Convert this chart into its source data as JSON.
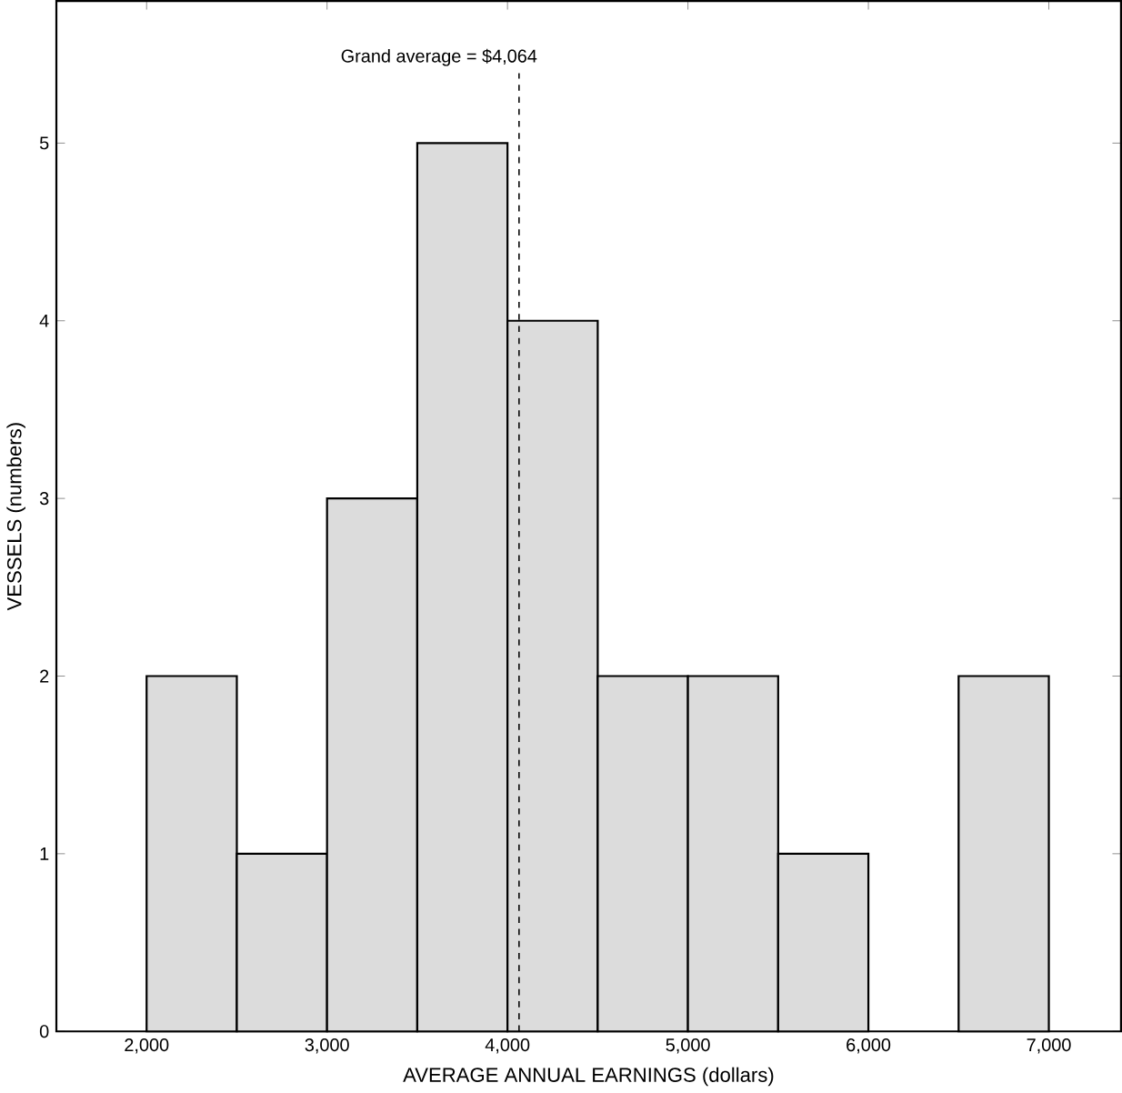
{
  "chart_data": {
    "type": "histogram",
    "xlabel": "AVERAGE ANNUAL EARNINGS (dollars)",
    "ylabel": "VESSELS (numbers)",
    "bins": [
      2000,
      2500,
      3000,
      3500,
      4000,
      4500,
      5000,
      5500,
      6000,
      6500,
      7000
    ],
    "values": [
      2,
      1,
      3,
      5,
      4,
      2,
      2,
      1,
      0,
      2
    ],
    "color": "#dcdcdc",
    "xlim": [
      1500,
      7400
    ],
    "ylim": [
      0,
      5.8
    ],
    "xticks": [
      {
        "value": 2000,
        "label": "2,000"
      },
      {
        "value": 3000,
        "label": "3,000"
      },
      {
        "value": 4000,
        "label": "4,000"
      },
      {
        "value": 5000,
        "label": "5,000"
      },
      {
        "value": 6000,
        "label": "6,000"
      },
      {
        "value": 7000,
        "label": "7,000"
      }
    ],
    "yticks": [
      0,
      1,
      2,
      3,
      4,
      5
    ],
    "ref_lines": [
      {
        "axis": "x",
        "value": 4064,
        "label": "Grand average = $4,064",
        "line_style": "dashed"
      }
    ]
  }
}
